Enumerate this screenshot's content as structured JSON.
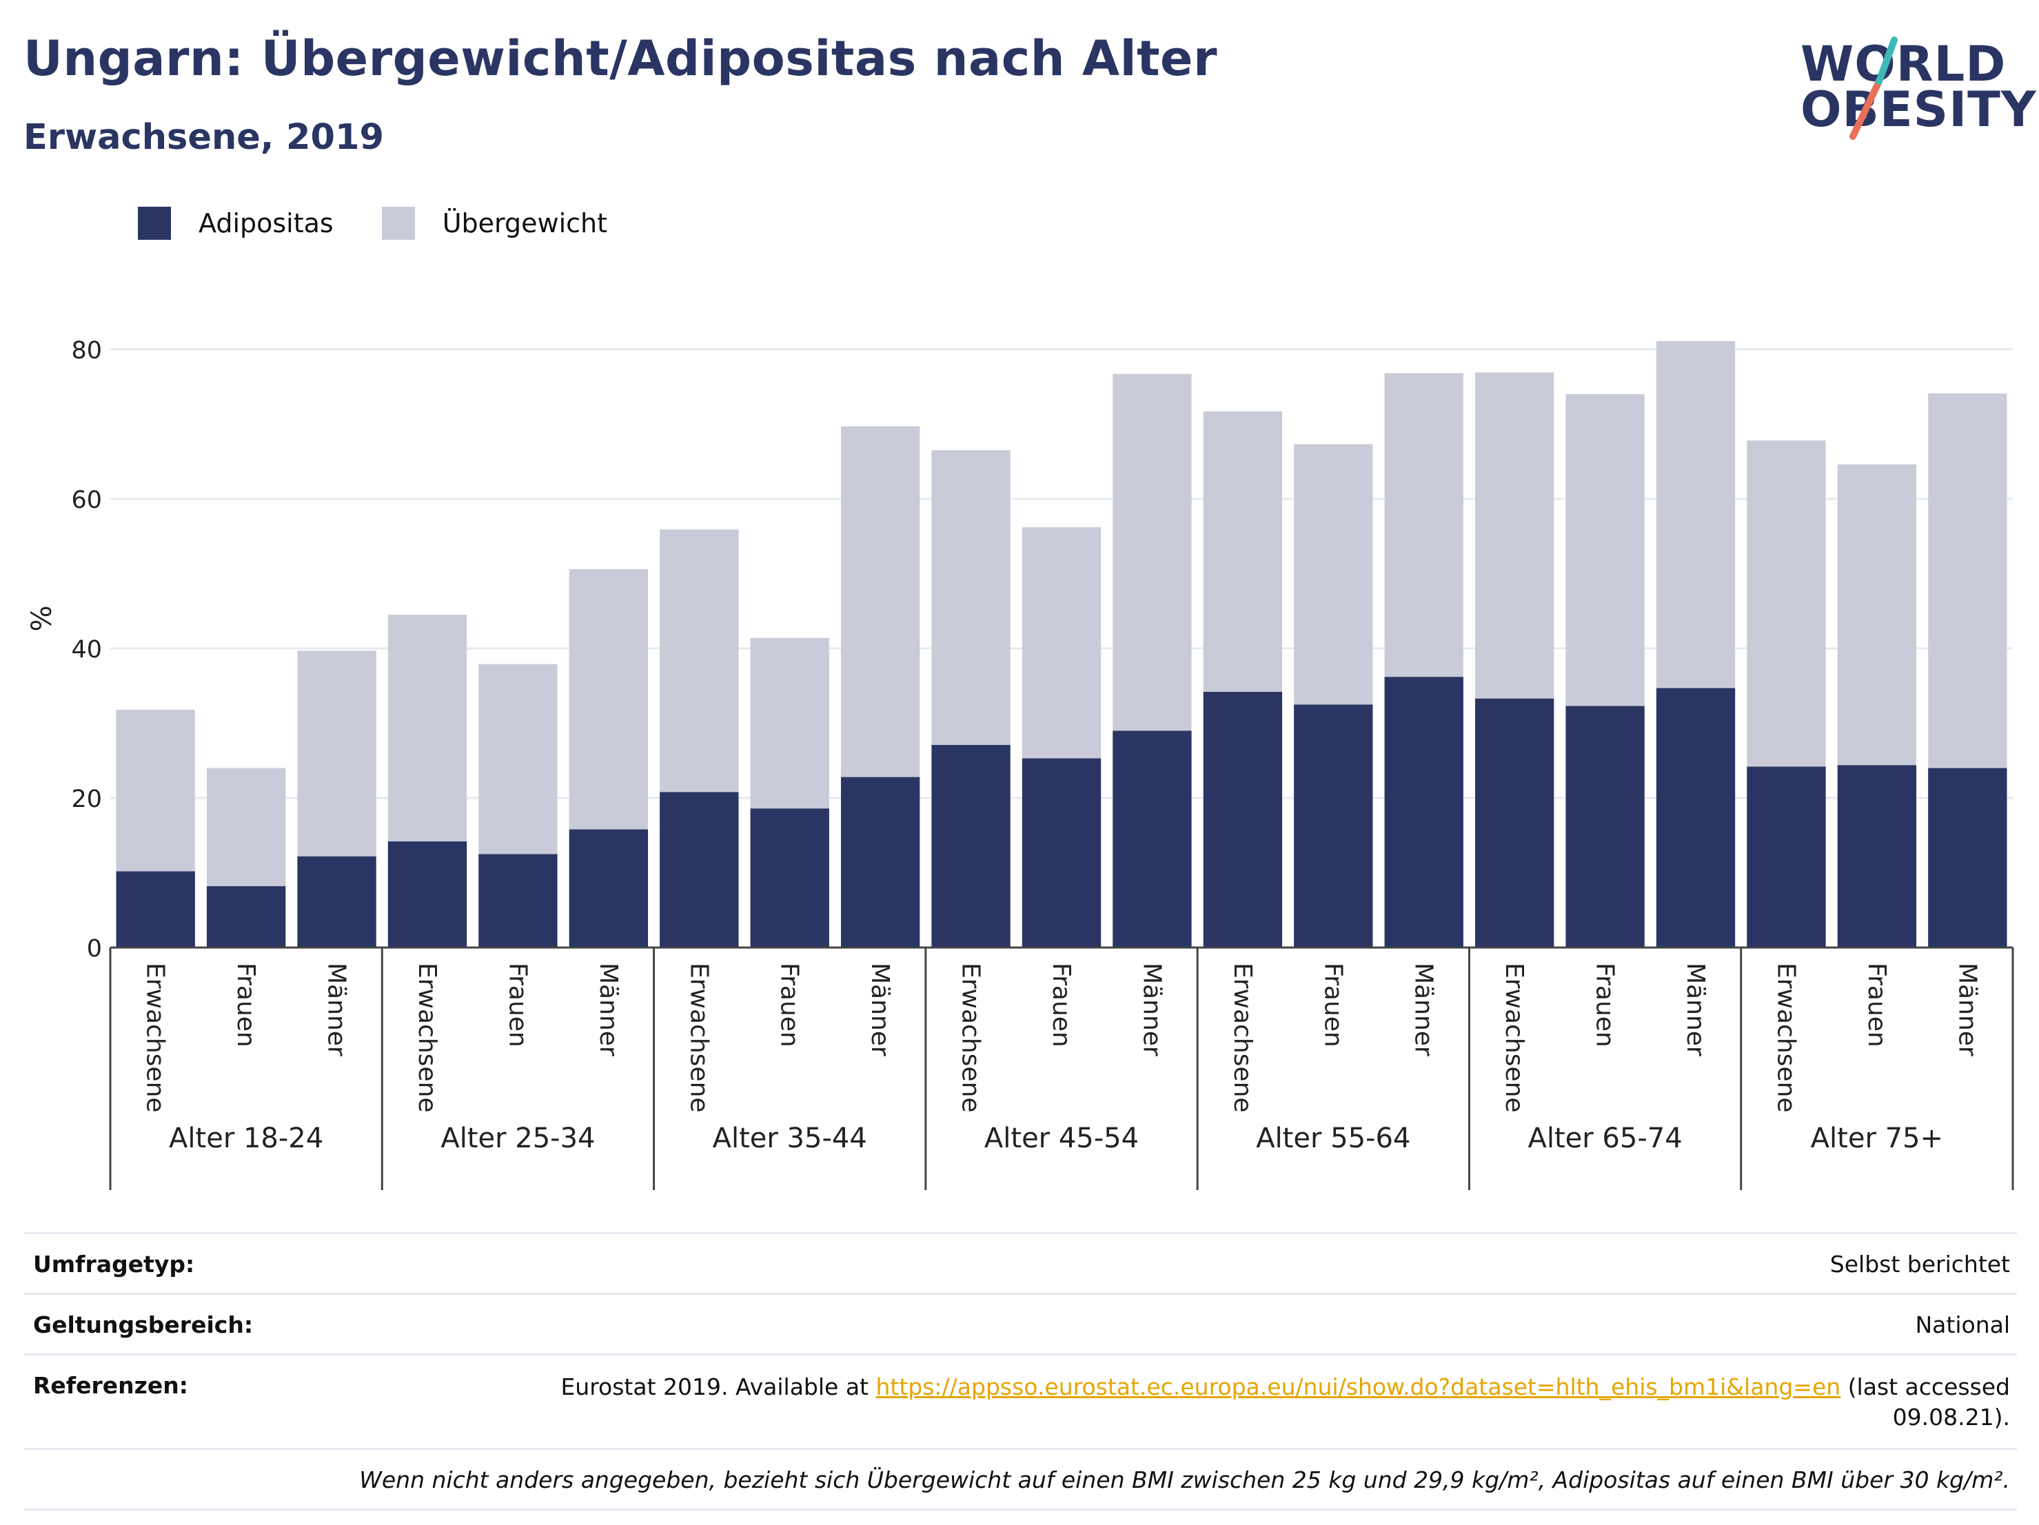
{
  "header": {
    "title": "Ungarn: Übergewicht/Adipositas nach Alter",
    "subtitle": "Erwachsene, 2019"
  },
  "logo": {
    "line1": "WORLD",
    "line2": "OBESITY",
    "colors": [
      "#2a3563",
      "#e8705a",
      "#3fb8b8"
    ]
  },
  "legend": [
    {
      "label": "Adipositas",
      "color": "#2a3563"
    },
    {
      "label": "Übergewicht",
      "color": "#cacbd8"
    }
  ],
  "chart_data": {
    "type": "bar",
    "stacked": true,
    "ylabel": "%",
    "ylim": [
      0,
      88
    ],
    "yticks": [
      0,
      20,
      40,
      60,
      80
    ],
    "grid": true,
    "legend_position": "top-left",
    "groups": [
      "Alter 18-24",
      "Alter 25-34",
      "Alter 35-44",
      "Alter 45-54",
      "Alter 55-64",
      "Alter 65-74",
      "Alter 75+"
    ],
    "subcategories": [
      "Erwachsene",
      "Frauen",
      "Männer"
    ],
    "series": [
      {
        "name": "Adipositas",
        "color": "#2a3563",
        "values": [
          10.2,
          8.2,
          12.2,
          14.2,
          12.5,
          15.8,
          20.8,
          18.6,
          22.8,
          27.1,
          25.3,
          29.0,
          34.2,
          32.5,
          36.2,
          33.3,
          32.3,
          34.7,
          24.2,
          24.4,
          24.0
        ]
      },
      {
        "name": "Übergewicht",
        "color": "#cacbd8",
        "values": [
          21.6,
          15.8,
          27.5,
          30.3,
          25.4,
          34.8,
          35.1,
          22.8,
          46.9,
          39.4,
          30.9,
          47.7,
          37.5,
          34.8,
          40.6,
          43.6,
          41.7,
          46.4,
          43.6,
          40.2,
          50.1
        ]
      }
    ]
  },
  "info": {
    "survey_label": "Umfragetyp:",
    "survey_value": "Selbst berichtet",
    "scope_label": "Geltungsbereich:",
    "scope_value": "National",
    "ref_label": "Referenzen:",
    "ref_prefix": "Eurostat 2019. Available at ",
    "ref_link": "https://appsso.eurostat.ec.europa.eu/nui/show.do?dataset=hlth_ehis_bm1i&lang=en",
    "ref_suffix": " (last accessed",
    "ref_date": "09.08.21).",
    "footnote": "Wenn nicht anders angegeben, bezieht sich Übergewicht auf einen BMI zwischen 25 kg und 29,9 kg/m², Adipositas auf einen BMI über 30 kg/m²."
  }
}
